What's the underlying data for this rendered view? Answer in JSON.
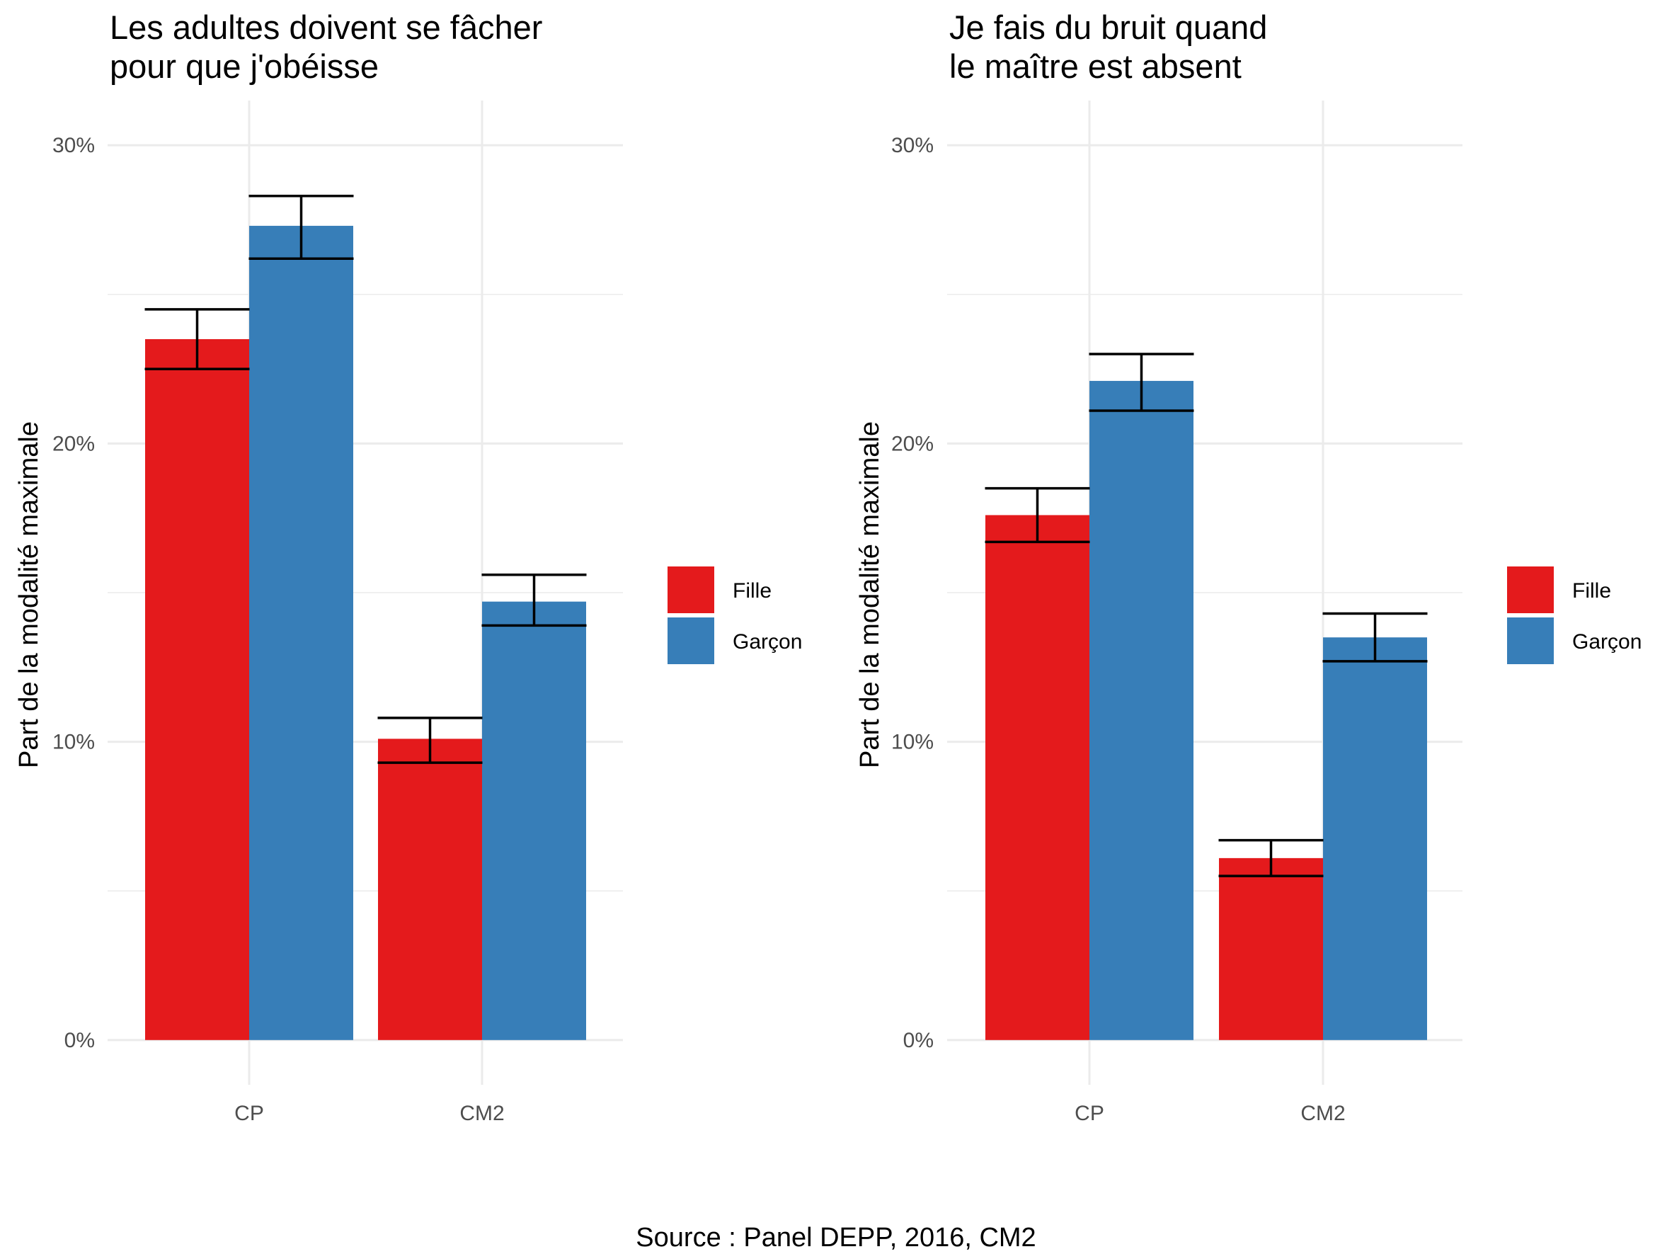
{
  "chart_data": [
    {
      "type": "bar",
      "title_lines": [
        "Les adultes doivent se fâcher",
        "pour que j'obéisse"
      ],
      "xlabel": "",
      "ylabel": "Part de la modalité maximale",
      "categories": [
        "CP",
        "CM2"
      ],
      "ylim": [
        -0.015,
        0.315
      ],
      "y_ticks": [
        0,
        0.1,
        0.2,
        0.3
      ],
      "y_tick_labels": [
        "0%",
        "10%",
        "20%",
        "30%"
      ],
      "grid": true,
      "error_bars": true,
      "legend": {
        "placement": "right",
        "entries": [
          "Fille",
          "Garçon"
        ]
      },
      "series": [
        {
          "name": "Fille",
          "color": "#E41A1C",
          "values": [
            0.235,
            0.101
          ],
          "ci_low": [
            0.225,
            0.093
          ],
          "ci_high": [
            0.245,
            0.108
          ]
        },
        {
          "name": "Garçon",
          "color": "#377EB8",
          "values": [
            0.273,
            0.147
          ],
          "ci_low": [
            0.262,
            0.139
          ],
          "ci_high": [
            0.283,
            0.156
          ]
        }
      ]
    },
    {
      "type": "bar",
      "title_lines": [
        "Je fais du bruit quand",
        "le maître est absent"
      ],
      "xlabel": "",
      "ylabel": "Part de la modalité maximale",
      "categories": [
        "CP",
        "CM2"
      ],
      "ylim": [
        -0.015,
        0.315
      ],
      "y_ticks": [
        0,
        0.1,
        0.2,
        0.3
      ],
      "y_tick_labels": [
        "0%",
        "10%",
        "20%",
        "30%"
      ],
      "grid": true,
      "error_bars": true,
      "legend": {
        "placement": "right",
        "entries": [
          "Fille",
          "Garçon"
        ]
      },
      "series": [
        {
          "name": "Fille",
          "color": "#E41A1C",
          "values": [
            0.176,
            0.061
          ],
          "ci_low": [
            0.167,
            0.055
          ],
          "ci_high": [
            0.185,
            0.067
          ]
        },
        {
          "name": "Garçon",
          "color": "#377EB8",
          "values": [
            0.221,
            0.135
          ],
          "ci_low": [
            0.211,
            0.127
          ],
          "ci_high": [
            0.23,
            0.143
          ]
        }
      ]
    }
  ],
  "caption": "Source : Panel DEPP, 2016, CM2"
}
